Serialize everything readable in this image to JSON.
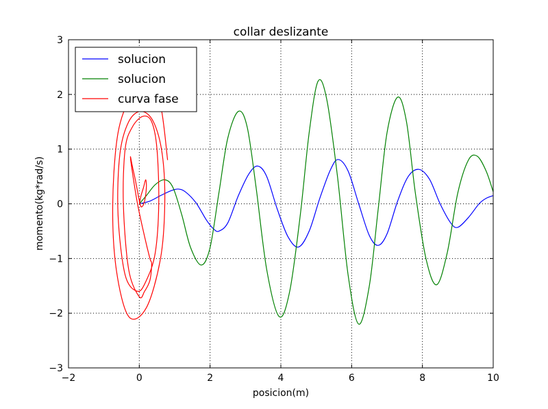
{
  "chart_data": {
    "type": "line",
    "title": "collar deslizante",
    "xlabel": "posicion(m)",
    "ylabel": "momento(kg*rad/s)",
    "xlim": [
      -2,
      10
    ],
    "ylim": [
      -3,
      3
    ],
    "xticks": [
      "−2",
      "0",
      "2",
      "4",
      "6",
      "8",
      "10"
    ],
    "yticks": [
      "−3",
      "−2",
      "−1",
      "0",
      "1",
      "2",
      "3"
    ],
    "grid": true,
    "legend_position": "top-left",
    "series": [
      {
        "name": "solucion",
        "color": "#0000ff",
        "x": [
          0,
          0.3,
          0.6,
          0.9,
          1.1,
          1.3,
          1.6,
          1.9,
          2.1,
          2.25,
          2.5,
          2.8,
          3.1,
          3.35,
          3.6,
          3.9,
          4.2,
          4.5,
          4.8,
          5.1,
          5.4,
          5.62,
          5.9,
          6.2,
          6.5,
          6.75,
          7.0,
          7.3,
          7.6,
          7.9,
          8.2,
          8.5,
          8.8,
          9.0,
          9.3,
          9.6,
          9.8,
          10.0
        ],
        "y": [
          0,
          0.05,
          0.15,
          0.24,
          0.27,
          0.22,
          0.02,
          -0.3,
          -0.46,
          -0.5,
          -0.35,
          0.15,
          0.55,
          0.69,
          0.5,
          -0.1,
          -0.6,
          -0.79,
          -0.5,
          0.1,
          0.62,
          0.81,
          0.6,
          0.0,
          -0.58,
          -0.76,
          -0.55,
          0.05,
          0.5,
          0.63,
          0.45,
          0.0,
          -0.35,
          -0.43,
          -0.25,
          0.0,
          0.1,
          0.15
        ]
      },
      {
        "name": "solucion",
        "color": "#008000",
        "x": [
          0,
          0.2,
          0.45,
          0.72,
          0.95,
          1.2,
          1.45,
          1.75,
          2.0,
          2.25,
          2.5,
          2.8,
          3.05,
          3.3,
          3.6,
          3.95,
          4.25,
          4.55,
          4.8,
          5.05,
          5.3,
          5.6,
          5.9,
          6.2,
          6.5,
          6.75,
          7.0,
          7.3,
          7.55,
          7.8,
          8.1,
          8.4,
          8.7,
          9.0,
          9.3,
          9.55,
          9.8,
          10.0
        ],
        "y": [
          0,
          0.15,
          0.35,
          0.44,
          0.3,
          -0.2,
          -0.8,
          -1.12,
          -0.8,
          0.2,
          1.2,
          1.69,
          1.4,
          0.3,
          -1.2,
          -2.06,
          -1.6,
          -0.2,
          1.3,
          2.24,
          1.9,
          0.5,
          -1.3,
          -2.2,
          -1.5,
          -0.1,
          1.3,
          1.95,
          1.5,
          0.2,
          -1.0,
          -1.48,
          -0.9,
          0.2,
          0.8,
          0.87,
          0.6,
          0.22
        ]
      },
      {
        "name": "curva fase",
        "color": "#ff0000",
        "x": [
          0,
          0.05,
          0.12,
          0.18,
          0.2,
          0.15,
          0.08,
          0.02,
          -0.1,
          -0.2,
          -0.25,
          -0.2,
          -0.05,
          0.15,
          0.3,
          0.35,
          0.3,
          0.15,
          0.0,
          -0.3,
          -0.45,
          -0.4,
          -0.2,
          0.1,
          0.35,
          0.5,
          0.55,
          0.45,
          0.2,
          -0.05,
          -0.4,
          -0.6,
          -0.55,
          -0.3,
          0.05,
          0.4,
          0.65,
          0.72,
          0.6,
          0.2,
          -0.3,
          -0.65,
          -0.75,
          -0.6,
          -0.2,
          0.25,
          0.6,
          0.8
        ],
        "y": [
          0,
          0.15,
          0.3,
          0.44,
          0.3,
          0.05,
          -0.05,
          0.0,
          0.4,
          0.7,
          0.86,
          0.6,
          0.0,
          -0.6,
          -1.0,
          -1.1,
          -1.4,
          -1.6,
          -1.7,
          -1.2,
          0.0,
          1.0,
          1.4,
          1.6,
          1.5,
          1.0,
          0.0,
          -0.9,
          -1.4,
          -1.6,
          -1.3,
          -0.2,
          0.9,
          1.5,
          1.69,
          1.5,
          0.9,
          0.0,
          -1.0,
          -1.9,
          -2.06,
          -1.2,
          0.0,
          1.3,
          2.0,
          2.2,
          1.8,
          0.8
        ]
      }
    ]
  }
}
